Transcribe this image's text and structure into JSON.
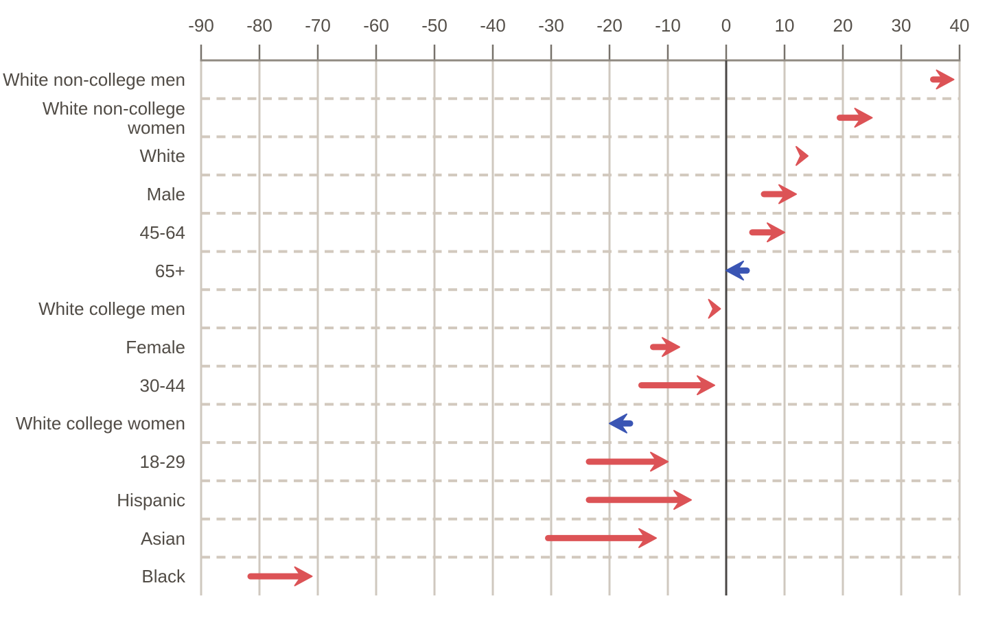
{
  "chart_data": {
    "type": "arrow",
    "title": "",
    "xlabel": "",
    "ylabel": "",
    "axis_position": "top",
    "xlim": [
      -90,
      40
    ],
    "x_ticks": [
      "-90",
      "-80",
      "-70",
      "-60",
      "-50",
      "-40",
      "-30",
      "-20",
      "-10",
      "0",
      "10",
      "20",
      "30",
      "40"
    ],
    "grid": "solid vertical gridline at each tick, dashed horizontal separator between category rows, dark vertical line at zero",
    "legend": "none",
    "colors": {
      "shift_right_arrow": "#dc5356",
      "shift_left_arrow": "#3a55b4",
      "gridline": "#cfc8bf",
      "row_separator_dashed": "#d2c9be",
      "axis_line": "#908a82",
      "tick_mark": "#77726b",
      "zero_line": "#4a4745",
      "tick_label_text": "#55504a",
      "category_label_text": "#514c46",
      "background": "#ffffff"
    },
    "rows": [
      {
        "category": "White non-college men",
        "start": 35,
        "end": 39,
        "direction": "right",
        "color": "red"
      },
      {
        "category": "White non-college women",
        "start": 19,
        "end": 25,
        "direction": "right",
        "color": "red"
      },
      {
        "category": "White",
        "start": 12,
        "end": 14,
        "direction": "right",
        "color": "red"
      },
      {
        "category": "Male",
        "start": 6,
        "end": 12,
        "direction": "right",
        "color": "red"
      },
      {
        "category": "45-64",
        "start": 4,
        "end": 10,
        "direction": "right",
        "color": "red"
      },
      {
        "category": "65+",
        "start": 4,
        "end": 0,
        "direction": "left",
        "color": "blue"
      },
      {
        "category": "White college men",
        "start": -3,
        "end": -1,
        "direction": "right",
        "color": "red"
      },
      {
        "category": "Female",
        "start": -13,
        "end": -8,
        "direction": "right",
        "color": "red"
      },
      {
        "category": "30-44",
        "start": -15,
        "end": -2,
        "direction": "right",
        "color": "red"
      },
      {
        "category": "White college women",
        "start": -16,
        "end": -20,
        "direction": "left",
        "color": "blue"
      },
      {
        "category": "18-29",
        "start": -24,
        "end": -10,
        "direction": "right",
        "color": "red"
      },
      {
        "category": "Hispanic",
        "start": -24,
        "end": -6,
        "direction": "right",
        "color": "red"
      },
      {
        "category": "Asian",
        "start": -31,
        "end": -12,
        "direction": "right",
        "color": "red"
      },
      {
        "category": "Black",
        "start": -82,
        "end": -71,
        "direction": "right",
        "color": "red"
      }
    ]
  }
}
